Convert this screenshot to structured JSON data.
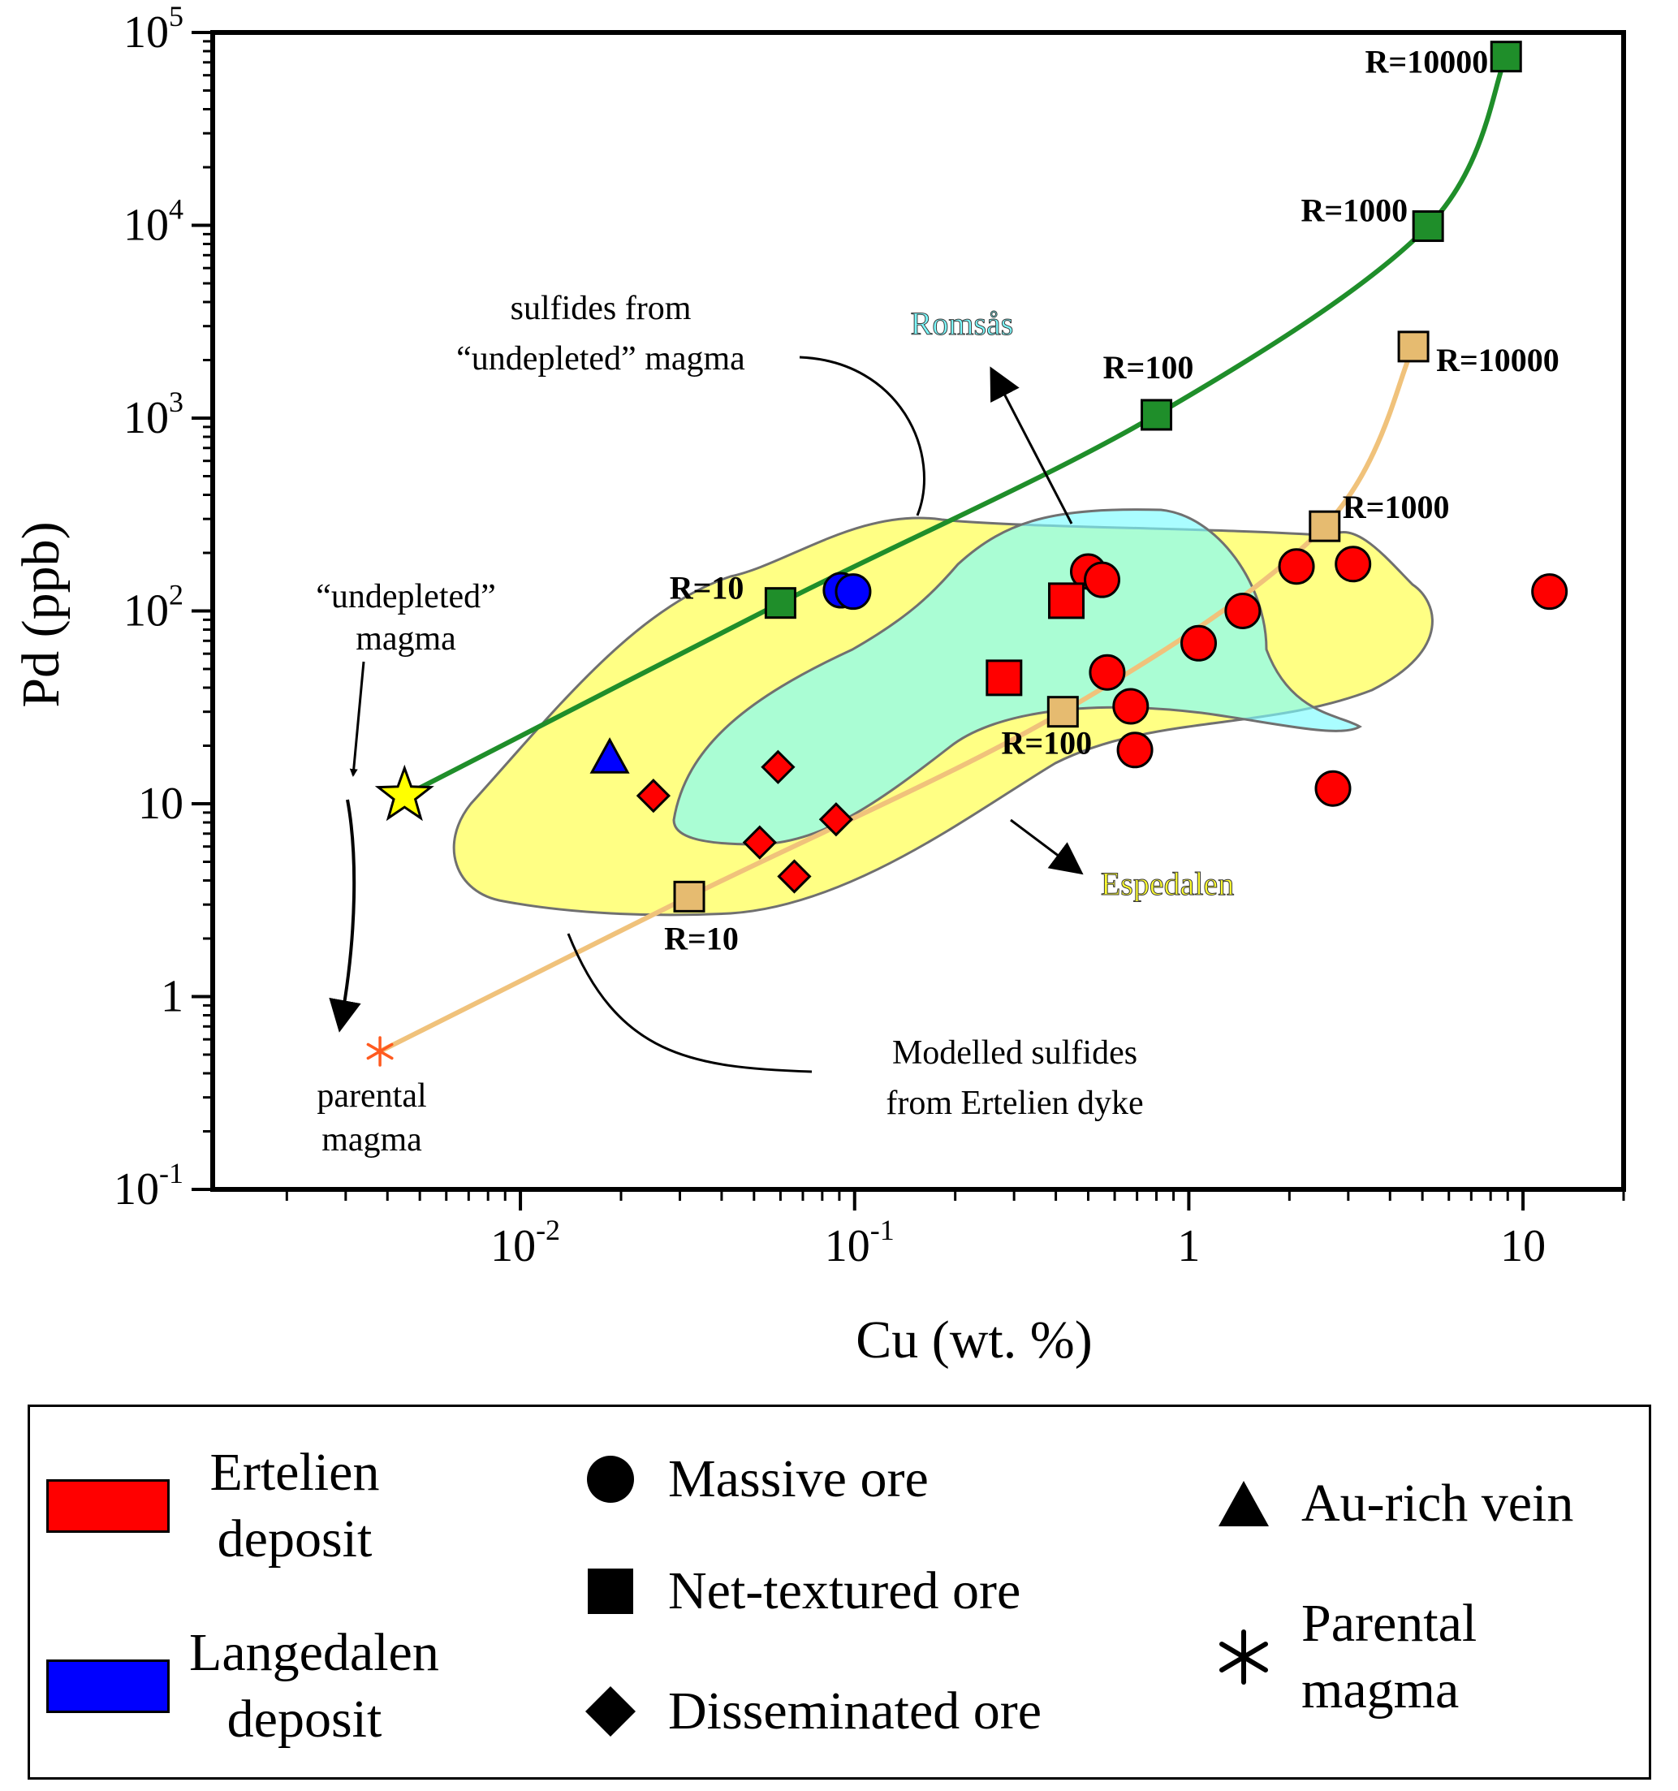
{
  "chart_data": {
    "type": "scatter",
    "x_scale": "log",
    "y_scale": "log",
    "xlim": [
      0.0012,
      20
    ],
    "ylim": [
      0.1,
      100000
    ],
    "xlabel": "Cu (wt. %)",
    "ylabel": "Pd (ppb)",
    "x_ticks": [
      {
        "value": 0.01,
        "base": "10",
        "exp": "-2"
      },
      {
        "value": 0.1,
        "base": "10",
        "exp": "-1"
      },
      {
        "value": 1,
        "base": "1",
        "exp": ""
      },
      {
        "value": 10,
        "base": "10",
        "exp": ""
      }
    ],
    "y_ticks": [
      {
        "value": 0.1,
        "base": "10",
        "exp": "-1"
      },
      {
        "value": 1,
        "base": "1",
        "exp": ""
      },
      {
        "value": 10,
        "base": "10",
        "exp": ""
      },
      {
        "value": 100,
        "base": "10",
        "exp": "2"
      },
      {
        "value": 1000,
        "base": "10",
        "exp": "3"
      },
      {
        "value": 10000,
        "base": "10",
        "exp": "4"
      },
      {
        "value": 100000,
        "base": "10",
        "exp": "5"
      }
    ],
    "series": [
      {
        "name": "Ertelien deposit - Massive ore",
        "deposit": "Ertelien",
        "marker": "circle",
        "color": "#ff0000",
        "points": [
          [
            0.5,
            160
          ],
          [
            0.55,
            145
          ],
          [
            0.57,
            48
          ],
          [
            0.67,
            32
          ],
          [
            0.69,
            19
          ],
          [
            1.07,
            68
          ],
          [
            1.45,
            100
          ],
          [
            2.1,
            170
          ],
          [
            3.1,
            175
          ],
          [
            2.7,
            12
          ],
          [
            12,
            126
          ]
        ]
      },
      {
        "name": "Ertelien deposit - Net-textured ore",
        "deposit": "Ertelien",
        "marker": "square",
        "color": "#ff0000",
        "points": [
          [
            0.28,
            45
          ],
          [
            0.43,
            113
          ]
        ]
      },
      {
        "name": "Ertelien deposit - Disseminated ore",
        "deposit": "Ertelien",
        "marker": "diamond",
        "color": "#ff0000",
        "points": [
          [
            0.025,
            11
          ],
          [
            0.059,
            15.5
          ],
          [
            0.052,
            6.3
          ],
          [
            0.066,
            4.2
          ],
          [
            0.088,
            8.3
          ]
        ]
      },
      {
        "name": "Langedalen deposit - Massive ore",
        "deposit": "Langedalen",
        "marker": "circle",
        "color": "#0000ff",
        "points": [
          [
            0.091,
            128
          ],
          [
            0.099,
            126
          ]
        ]
      },
      {
        "name": "Langedalen deposit - Au-rich vein",
        "deposit": "Langedalen",
        "marker": "triangle",
        "color": "#0000ff",
        "points": [
          [
            0.0185,
            17
          ]
        ]
      }
    ],
    "model_curves": [
      {
        "name": "sulfides from \"undepleted\" magma",
        "color": "#1f8e2a",
        "points": [
          [
            0.0045,
            11
          ],
          [
            0.06,
            110
          ],
          [
            0.8,
            1040
          ],
          [
            5.2,
            9900
          ],
          [
            8.9,
            75000
          ]
        ],
        "r_labels": [
          "R=10",
          "R=100",
          "R=1000",
          "R=10000"
        ]
      },
      {
        "name": "Modelled sulfides from Ertelien dyke",
        "color": "#f0c27b",
        "points": [
          [
            0.0038,
            0.52
          ],
          [
            0.032,
            3.3
          ],
          [
            0.42,
            30
          ],
          [
            2.55,
            275
          ],
          [
            4.7,
            2350
          ]
        ],
        "r_labels": [
          "R=10",
          "R=100",
          "R=1000",
          "R=10000"
        ]
      }
    ],
    "special_points": [
      {
        "name": "\"undepleted\" magma",
        "marker": "star",
        "color": "#ffff00",
        "x": 0.0045,
        "y": 11
      },
      {
        "name": "parental magma",
        "marker": "asterisk",
        "color": "#ff5a1f",
        "x": 0.0038,
        "y": 0.52
      }
    ],
    "fields": [
      {
        "name": "Espedalen",
        "color": "#ffff84"
      },
      {
        "name": "Romsås",
        "color": "#7dfcff"
      }
    ],
    "annotations": {
      "undepleted_sulfides": [
        "sulfides from",
        "“undepleted” magma"
      ],
      "undepleted_magma": [
        "“undepleted”",
        "magma"
      ],
      "parental_magma": [
        "parental",
        "magma"
      ],
      "modelled_sulfides": [
        "Modelled sulfides",
        "from Ertelien dyke"
      ],
      "romsas": "Romsås",
      "espedalen": "Espedalen"
    }
  },
  "legend": {
    "ertelien": {
      "line1": "Ertelien",
      "line2": "deposit",
      "color": "#ff0000"
    },
    "langedalen": {
      "line1": "Langedalen",
      "line2": "deposit",
      "color": "#0000ff"
    },
    "massive": "Massive ore",
    "net_textured": "Net-textured ore",
    "disseminated": "Disseminated ore",
    "au_vein": "Au-rich vein",
    "parental": {
      "line1": "Parental",
      "line2": "magma"
    }
  }
}
